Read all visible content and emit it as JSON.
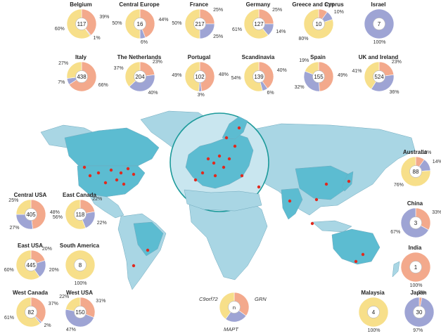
{
  "colors": {
    "c9orf72": "#f7df8a",
    "grn": "#f3a98c",
    "mapt": "#9ea4d4",
    "ocean": "#ffffff",
    "land": "#a9d6e4",
    "land_study": "#5cbcd1",
    "europe_inset": "#c9e6ef",
    "site": "#e02a1f",
    "circle_border": "#1c9a9a"
  },
  "legend": {
    "center": "n",
    "c9orf72": "C9orf72",
    "grn": "GRN",
    "mapt": "MAPT"
  },
  "pies": [
    {
      "name": "Belgium",
      "n": "117",
      "c9": 60,
      "grn": 39,
      "mapt": 1,
      "labels": {
        "c9": "60%",
        "grn": "39%",
        "mapt": "1%"
      }
    },
    {
      "name": "Central Europe",
      "n": "16",
      "c9": 50,
      "grn": 44,
      "mapt": 6,
      "labels": {
        "c9": "50%",
        "grn": "44%",
        "mapt": "6%"
      }
    },
    {
      "name": "France",
      "n": "217",
      "c9": 50,
      "grn": 25,
      "mapt": 25,
      "labels": {
        "c9": "50%",
        "grn": "25%",
        "mapt": "25%"
      }
    },
    {
      "name": "Germany",
      "n": "127",
      "c9": 61,
      "grn": 25,
      "mapt": 14,
      "labels": {
        "c9": "61%",
        "grn": "25%",
        "mapt": "14%"
      }
    },
    {
      "name": "Greece and Cyprus",
      "n": "10",
      "c9": 80,
      "grn": 10,
      "mapt": 10,
      "labels": {
        "c9": "80%",
        "grn": "10%",
        "mapt": "10%"
      }
    },
    {
      "name": "Israel",
      "n": "7",
      "c9": 0,
      "grn": 0,
      "mapt": 100,
      "labels": {
        "mapt": "100%"
      }
    },
    {
      "name": "Italy",
      "n": "438",
      "c9": 27,
      "grn": 66,
      "mapt": 7,
      "labels": {
        "c9": "27%",
        "grn": "66%",
        "mapt": "7%"
      }
    },
    {
      "name": "The Netherlands",
      "n": "204",
      "c9": 37,
      "grn": 23,
      "mapt": 40,
      "labels": {
        "c9": "37%",
        "grn": "23%",
        "mapt": "40%"
      }
    },
    {
      "name": "Portugal",
      "n": "102",
      "c9": 49,
      "grn": 48,
      "mapt": 3,
      "labels": {
        "c9": "49%",
        "grn": "48%",
        "mapt": "3%"
      }
    },
    {
      "name": "Scandinavia",
      "n": "139",
      "c9": 54,
      "grn": 40,
      "mapt": 6,
      "labels": {
        "c9": "54%",
        "grn": "40%",
        "mapt": "6%"
      }
    },
    {
      "name": "Spain",
      "n": "155",
      "c9": 19,
      "grn": 49,
      "mapt": 32,
      "labels": {
        "c9": "19%",
        "grn": "49%",
        "mapt": "32%"
      }
    },
    {
      "name": "UK and Ireland",
      "n": "524",
      "c9": 41,
      "grn": 23,
      "mapt": 36,
      "labels": {
        "c9": "41%",
        "grn": "23%",
        "mapt": "36%"
      }
    },
    {
      "name": "Australia",
      "n": "88",
      "c9": 76,
      "grn": 10,
      "mapt": 14,
      "labels": {
        "c9": "76%",
        "grn": "10%",
        "mapt": "14%"
      }
    },
    {
      "name": "Central USA",
      "n": "405",
      "c9": 25,
      "grn": 48,
      "mapt": 27,
      "labels": {
        "c9": "25%",
        "grn": "48%",
        "mapt": "27%"
      }
    },
    {
      "name": "East Canada",
      "n": "118",
      "c9": 56,
      "grn": 22,
      "mapt": 22,
      "labels": {
        "c9": "56%",
        "grn": "22%",
        "mapt": "22%"
      }
    },
    {
      "name": "China",
      "n": "3",
      "c9": 0,
      "grn": 33,
      "mapt": 67,
      "labels": {
        "grn": "33%",
        "mapt": "67%"
      }
    },
    {
      "name": "East USA",
      "n": "445",
      "c9": 60,
      "grn": 20,
      "mapt": 20,
      "labels": {
        "c9": "60%",
        "grn": "20%",
        "mapt": "20%"
      }
    },
    {
      "name": "South America",
      "n": "8",
      "c9": 100,
      "grn": 0,
      "mapt": 0,
      "labels": {
        "c9": "100%"
      }
    },
    {
      "name": "India",
      "n": "1",
      "c9": 0,
      "grn": 100,
      "mapt": 0,
      "labels": {
        "grn": "100%"
      }
    },
    {
      "name": "West Canada",
      "n": "82",
      "c9": 61,
      "grn": 37,
      "mapt": 2,
      "labels": {
        "c9": "61%",
        "grn": "37%",
        "mapt": "2%"
      }
    },
    {
      "name": "West USA",
      "n": "150",
      "c9": 22,
      "grn": 31,
      "mapt": 47,
      "labels": {
        "c9": "22%",
        "grn": "31%",
        "mapt": "47%"
      }
    },
    {
      "name": "Malaysia",
      "n": "4",
      "c9": 100,
      "grn": 0,
      "mapt": 0,
      "labels": {
        "c9": "100%"
      }
    },
    {
      "name": "Japan",
      "n": "30",
      "c9": 0,
      "grn": 3,
      "mapt": 97,
      "labels": {
        "grn": "3%",
        "mapt": "97%"
      }
    }
  ]
}
